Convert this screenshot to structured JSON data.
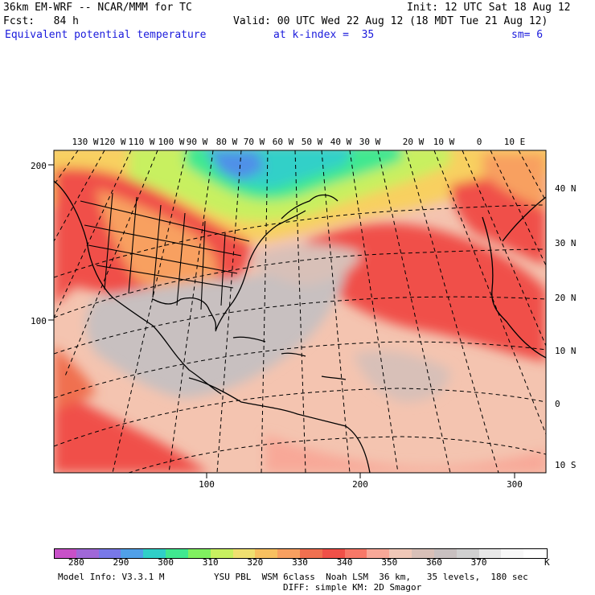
{
  "header": {
    "model_line": "36km EM-WRF -- NCAR/MMM for TC",
    "init_line": "Init: 12 UTC Sat 18 Aug 12",
    "fcst_line": "Fcst:   84 h",
    "valid_line": "Valid: 00 UTC Wed 22 Aug 12 (18 MDT Tue 21 Aug 12)",
    "field_name": "Equivalent potential temperature",
    "level_label": "at k-index =  35",
    "smooth_label": "sm= 6"
  },
  "map": {
    "top_lon_labels": [
      "130 W",
      "120 W",
      "110 W",
      "100 W",
      "90 W",
      "80 W",
      "70 W",
      "60 W",
      "50 W",
      "40 W",
      "30 W",
      "20 W",
      "10 W",
      "0",
      "10 E"
    ],
    "right_lat_labels": [
      "40 N",
      "30 N",
      "20 N",
      "10 N",
      "0",
      "10 S"
    ],
    "left_grid_labels": [
      "200",
      "100"
    ],
    "bottom_grid_labels": [
      "100",
      "200",
      "300"
    ]
  },
  "colorbar": {
    "units": "K",
    "labels": [
      "280",
      "290",
      "300",
      "310",
      "320",
      "330",
      "340",
      "350",
      "360",
      "370"
    ],
    "colors": [
      "#c850c8",
      "#a068d8",
      "#7878e8",
      "#50a0e8",
      "#30d0c8",
      "#40e890",
      "#80f060",
      "#c8f060",
      "#f0e070",
      "#f8c060",
      "#f8a060",
      "#f07050",
      "#f05048",
      "#f87868",
      "#f8a898",
      "#f0c8b8",
      "#d8c0b8",
      "#c8c0c0",
      "#d0d0d0",
      "#e8e8e8",
      "#f8f8f8",
      "#ffffff"
    ]
  },
  "footer": {
    "model_info": "Model Info: V3.3.1 M",
    "physics_line1": "YSU PBL  WSM 6class  Noah LSM  36 km,   35 levels,  180 sec",
    "physics_line2": "DIFF: simple KM: 2D Smagor"
  }
}
